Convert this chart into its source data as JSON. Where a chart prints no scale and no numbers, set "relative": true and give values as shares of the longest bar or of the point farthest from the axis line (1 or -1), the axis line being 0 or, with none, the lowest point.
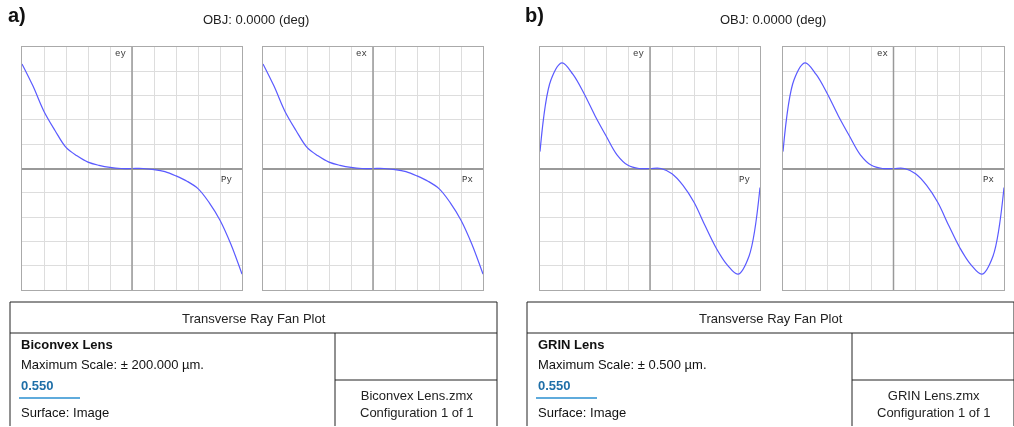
{
  "chart_data": [
    {
      "type": "line",
      "relative": true,
      "grid": true,
      "tick_labels": false,
      "xlabel": "Py",
      "ylabel": "ey",
      "categories": [
        null,
        null,
        null,
        null,
        null,
        null,
        null,
        null,
        null,
        null,
        null,
        null,
        null,
        null,
        null,
        null,
        null,
        null,
        null,
        null,
        null
      ],
      "series": [
        {
          "color": "#5a5aff",
          "values": [
            0.99,
            0.78,
            0.54,
            0.36,
            0.2,
            0.12,
            0.06,
            0.03,
            0.01,
            0,
            0,
            0,
            -0.01,
            -0.03,
            -0.07,
            -0.12,
            -0.19,
            -0.32,
            -0.49,
            -0.72,
            -1
          ]
        }
      ],
      "annotations": [
        "a)",
        "OBJ: 0.0000 (deg)",
        "Transverse Ray Fan Plot",
        "Biconvex Lens",
        "Maximum Scale: ± 200.000 µm.",
        "0.550",
        "Surface: Image",
        "Biconvex Lens.zmx",
        "Configuration 1 of 1"
      ]
    },
    {
      "type": "line",
      "relative": true,
      "grid": true,
      "tick_labels": false,
      "xlabel": "Px",
      "ylabel": "ex",
      "categories": [
        null,
        null,
        null,
        null,
        null,
        null,
        null,
        null,
        null,
        null,
        null,
        null,
        null,
        null,
        null,
        null,
        null,
        null,
        null,
        null,
        null
      ],
      "series": [
        {
          "color": "#5a5aff",
          "values": [
            0.99,
            0.78,
            0.54,
            0.36,
            0.2,
            0.12,
            0.06,
            0.03,
            0.01,
            0,
            0,
            0,
            -0.01,
            -0.03,
            -0.07,
            -0.12,
            -0.19,
            -0.32,
            -0.49,
            -0.72,
            -1
          ]
        }
      ]
    },
    {
      "type": "line",
      "relative": true,
      "grid": true,
      "tick_labels": false,
      "xlabel": "Py",
      "ylabel": "ey",
      "categories": [
        null,
        null,
        null,
        null,
        null,
        null,
        null,
        null,
        null,
        null,
        null,
        null,
        null,
        null,
        null,
        null,
        null,
        null,
        null,
        null,
        null
      ],
      "series": [
        {
          "color": "#5a5aff",
          "values": [
            0.16,
            0.84,
            1,
            0.89,
            0.71,
            0.5,
            0.31,
            0.13,
            0.03,
            0,
            0,
            0,
            -0.05,
            -0.16,
            -0.32,
            -0.54,
            -0.75,
            -0.91,
            -1,
            -0.83,
            -0.18
          ]
        }
      ],
      "annotations": [
        "b)",
        "OBJ: 0.0000 (deg)",
        "Transverse Ray Fan Plot",
        "GRIN Lens",
        "Maximum Scale: ± 0.500 µm.",
        "0.550",
        "Surface: Image",
        "GRIN Lens.zmx",
        "Configuration 1 of 1"
      ]
    },
    {
      "type": "line",
      "relative": true,
      "grid": true,
      "tick_labels": false,
      "xlabel": "Px",
      "ylabel": "ex",
      "categories": [
        null,
        null,
        null,
        null,
        null,
        null,
        null,
        null,
        null,
        null,
        null,
        null,
        null,
        null,
        null,
        null,
        null,
        null,
        null,
        null,
        null
      ],
      "series": [
        {
          "color": "#5a5aff",
          "values": [
            0.16,
            0.84,
            1,
            0.89,
            0.71,
            0.5,
            0.31,
            0.13,
            0.03,
            0,
            0,
            0,
            -0.05,
            -0.16,
            -0.32,
            -0.54,
            -0.75,
            -0.91,
            -1,
            -0.83,
            -0.18
          ]
        }
      ]
    }
  ]
}
